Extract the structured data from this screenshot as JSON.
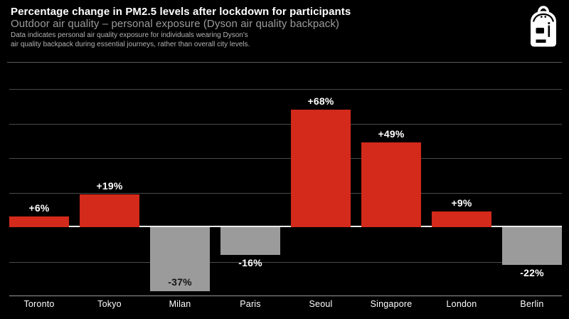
{
  "header": {
    "title": "Percentage change in PM2.5 levels after lockdown for participants",
    "subtitle": "Outdoor air quality – personal exposure (Dyson air quality backpack)",
    "note_line1": "Data indicates personal air quality exposure for individuals wearing Dyson's",
    "note_line2": "air quality backpack during essential journeys, rather than overall city levels.",
    "icon": "backpack-icon"
  },
  "colors": {
    "background": "#000000",
    "positive_bar": "#d32a1b",
    "negative_bar": "#9b9b9b",
    "gridline": "#4a4a4a",
    "zero_line": "#ebebeb",
    "axis_line": "#999999",
    "separator": "#5a5a5a",
    "value_label_light": "#ffffff",
    "value_label_dark": "#141414",
    "subtitle_text": "#9b9b9b",
    "note_text": "#b3b3b3"
  },
  "chart_data": {
    "type": "bar",
    "title": "Percentage change in PM2.5 levels after lockdown for participants",
    "subtitle": "Outdoor air quality – personal exposure (Dyson air quality backpack)",
    "categories": [
      "Toronto",
      "Tokyo",
      "Milan",
      "Paris",
      "Seoul",
      "Singapore",
      "London",
      "Berlin"
    ],
    "values": [
      6,
      19,
      -37,
      -16,
      68,
      49,
      9,
      -22
    ],
    "data_labels": [
      "+6%",
      "+19%",
      "-37%",
      "-16%",
      "+68%",
      "+49%",
      "+9%",
      "-22%"
    ],
    "xlabel": "",
    "ylabel": "",
    "ylim": [
      -40,
      92
    ],
    "gridline_values": [
      80,
      60,
      40,
      20,
      0,
      -20,
      -40
    ],
    "gridline_interval_pct": 20,
    "grid": "horizontal",
    "legend": "none",
    "axis_tick_labels_shown": false,
    "positive_color_meaning": "increase (red)",
    "negative_color_meaning": "decrease (grey)"
  }
}
